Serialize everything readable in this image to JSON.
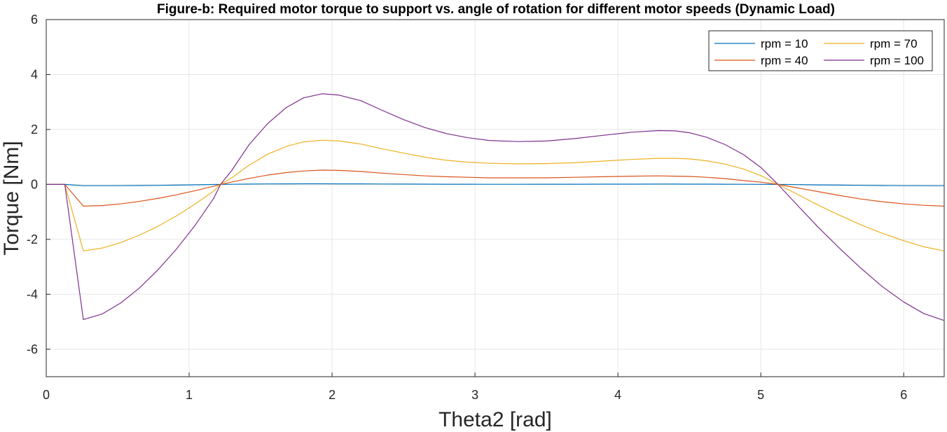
{
  "chart_data": {
    "type": "line",
    "title": "Figure-b: Required motor torque to support vs. angle of rotation for different motor speeds (Dynamic Load)",
    "xlabel": "Theta2 [rad]",
    "ylabel": "Torque [Nm]",
    "xlim": [
      0,
      6.2832
    ],
    "ylim": [
      -7,
      6
    ],
    "xticks": [
      0,
      1,
      2,
      3,
      4,
      5,
      6
    ],
    "yticks": [
      -6,
      -4,
      -2,
      0,
      2,
      4,
      6
    ],
    "grid": true,
    "legend_position": "top-right",
    "legend_columns": 2,
    "x": [
      0,
      0.13,
      0.26,
      0.39,
      0.52,
      0.65,
      0.78,
      0.91,
      1.04,
      1.17,
      1.22,
      1.3,
      1.42,
      1.55,
      1.68,
      1.8,
      1.93,
      2.05,
      2.2,
      2.35,
      2.5,
      2.65,
      2.8,
      2.95,
      3.1,
      3.3,
      3.5,
      3.7,
      3.9,
      4.1,
      4.28,
      4.4,
      4.5,
      4.62,
      4.75,
      4.88,
      5.0,
      5.12,
      5.26,
      5.4,
      5.55,
      5.7,
      5.85,
      6.0,
      6.14,
      6.28
    ],
    "series": [
      {
        "name": "rpm = 10",
        "color": "#0072BD",
        "values": [
          0,
          0,
          -0.05,
          -0.05,
          -0.047,
          -0.042,
          -0.035,
          -0.025,
          -0.015,
          -0.004,
          0,
          0.005,
          0.012,
          0.017,
          0.02,
          0.022,
          0.022,
          0.021,
          0.019,
          0.016,
          0.013,
          0.01,
          0.008,
          0.006,
          0.005,
          0.005,
          0.006,
          0.008,
          0.01,
          0.011,
          0.012,
          0.012,
          0.011,
          0.01,
          0.008,
          0.005,
          0.002,
          0,
          -0.008,
          -0.017,
          -0.026,
          -0.034,
          -0.041,
          -0.046,
          -0.049,
          -0.05
        ]
      },
      {
        "name": "rpm = 40",
        "color": "#D95319",
        "values": [
          0,
          0,
          -0.79,
          -0.77,
          -0.71,
          -0.62,
          -0.51,
          -0.38,
          -0.23,
          -0.07,
          0,
          0.09,
          0.22,
          0.34,
          0.43,
          0.49,
          0.52,
          0.51,
          0.47,
          0.41,
          0.36,
          0.31,
          0.28,
          0.26,
          0.24,
          0.24,
          0.24,
          0.26,
          0.28,
          0.3,
          0.31,
          0.3,
          0.29,
          0.26,
          0.21,
          0.14,
          0.08,
          0,
          -0.13,
          -0.26,
          -0.4,
          -0.53,
          -0.63,
          -0.71,
          -0.76,
          -0.79
        ]
      },
      {
        "name": "rpm = 70",
        "color": "#EDB120",
        "values": [
          0,
          0,
          -2.42,
          -2.32,
          -2.12,
          -1.85,
          -1.53,
          -1.15,
          -0.72,
          -0.25,
          0,
          0.25,
          0.7,
          1.1,
          1.38,
          1.55,
          1.61,
          1.58,
          1.47,
          1.3,
          1.14,
          0.99,
          0.88,
          0.81,
          0.77,
          0.75,
          0.76,
          0.79,
          0.85,
          0.91,
          0.95,
          0.95,
          0.93,
          0.86,
          0.74,
          0.56,
          0.32,
          0,
          -0.37,
          -0.75,
          -1.12,
          -1.47,
          -1.78,
          -2.05,
          -2.27,
          -2.42
        ]
      },
      {
        "name": "rpm = 100",
        "color": "#7E2F8E",
        "values": [
          0,
          0,
          -4.92,
          -4.72,
          -4.32,
          -3.78,
          -3.12,
          -2.36,
          -1.5,
          -0.52,
          0,
          0.52,
          1.45,
          2.22,
          2.8,
          3.15,
          3.3,
          3.25,
          3.05,
          2.7,
          2.36,
          2.07,
          1.85,
          1.7,
          1.6,
          1.56,
          1.58,
          1.67,
          1.79,
          1.9,
          1.96,
          1.95,
          1.88,
          1.72,
          1.45,
          1.08,
          0.62,
          0,
          -0.78,
          -1.55,
          -2.32,
          -3.05,
          -3.72,
          -4.28,
          -4.7,
          -4.95
        ]
      }
    ]
  }
}
